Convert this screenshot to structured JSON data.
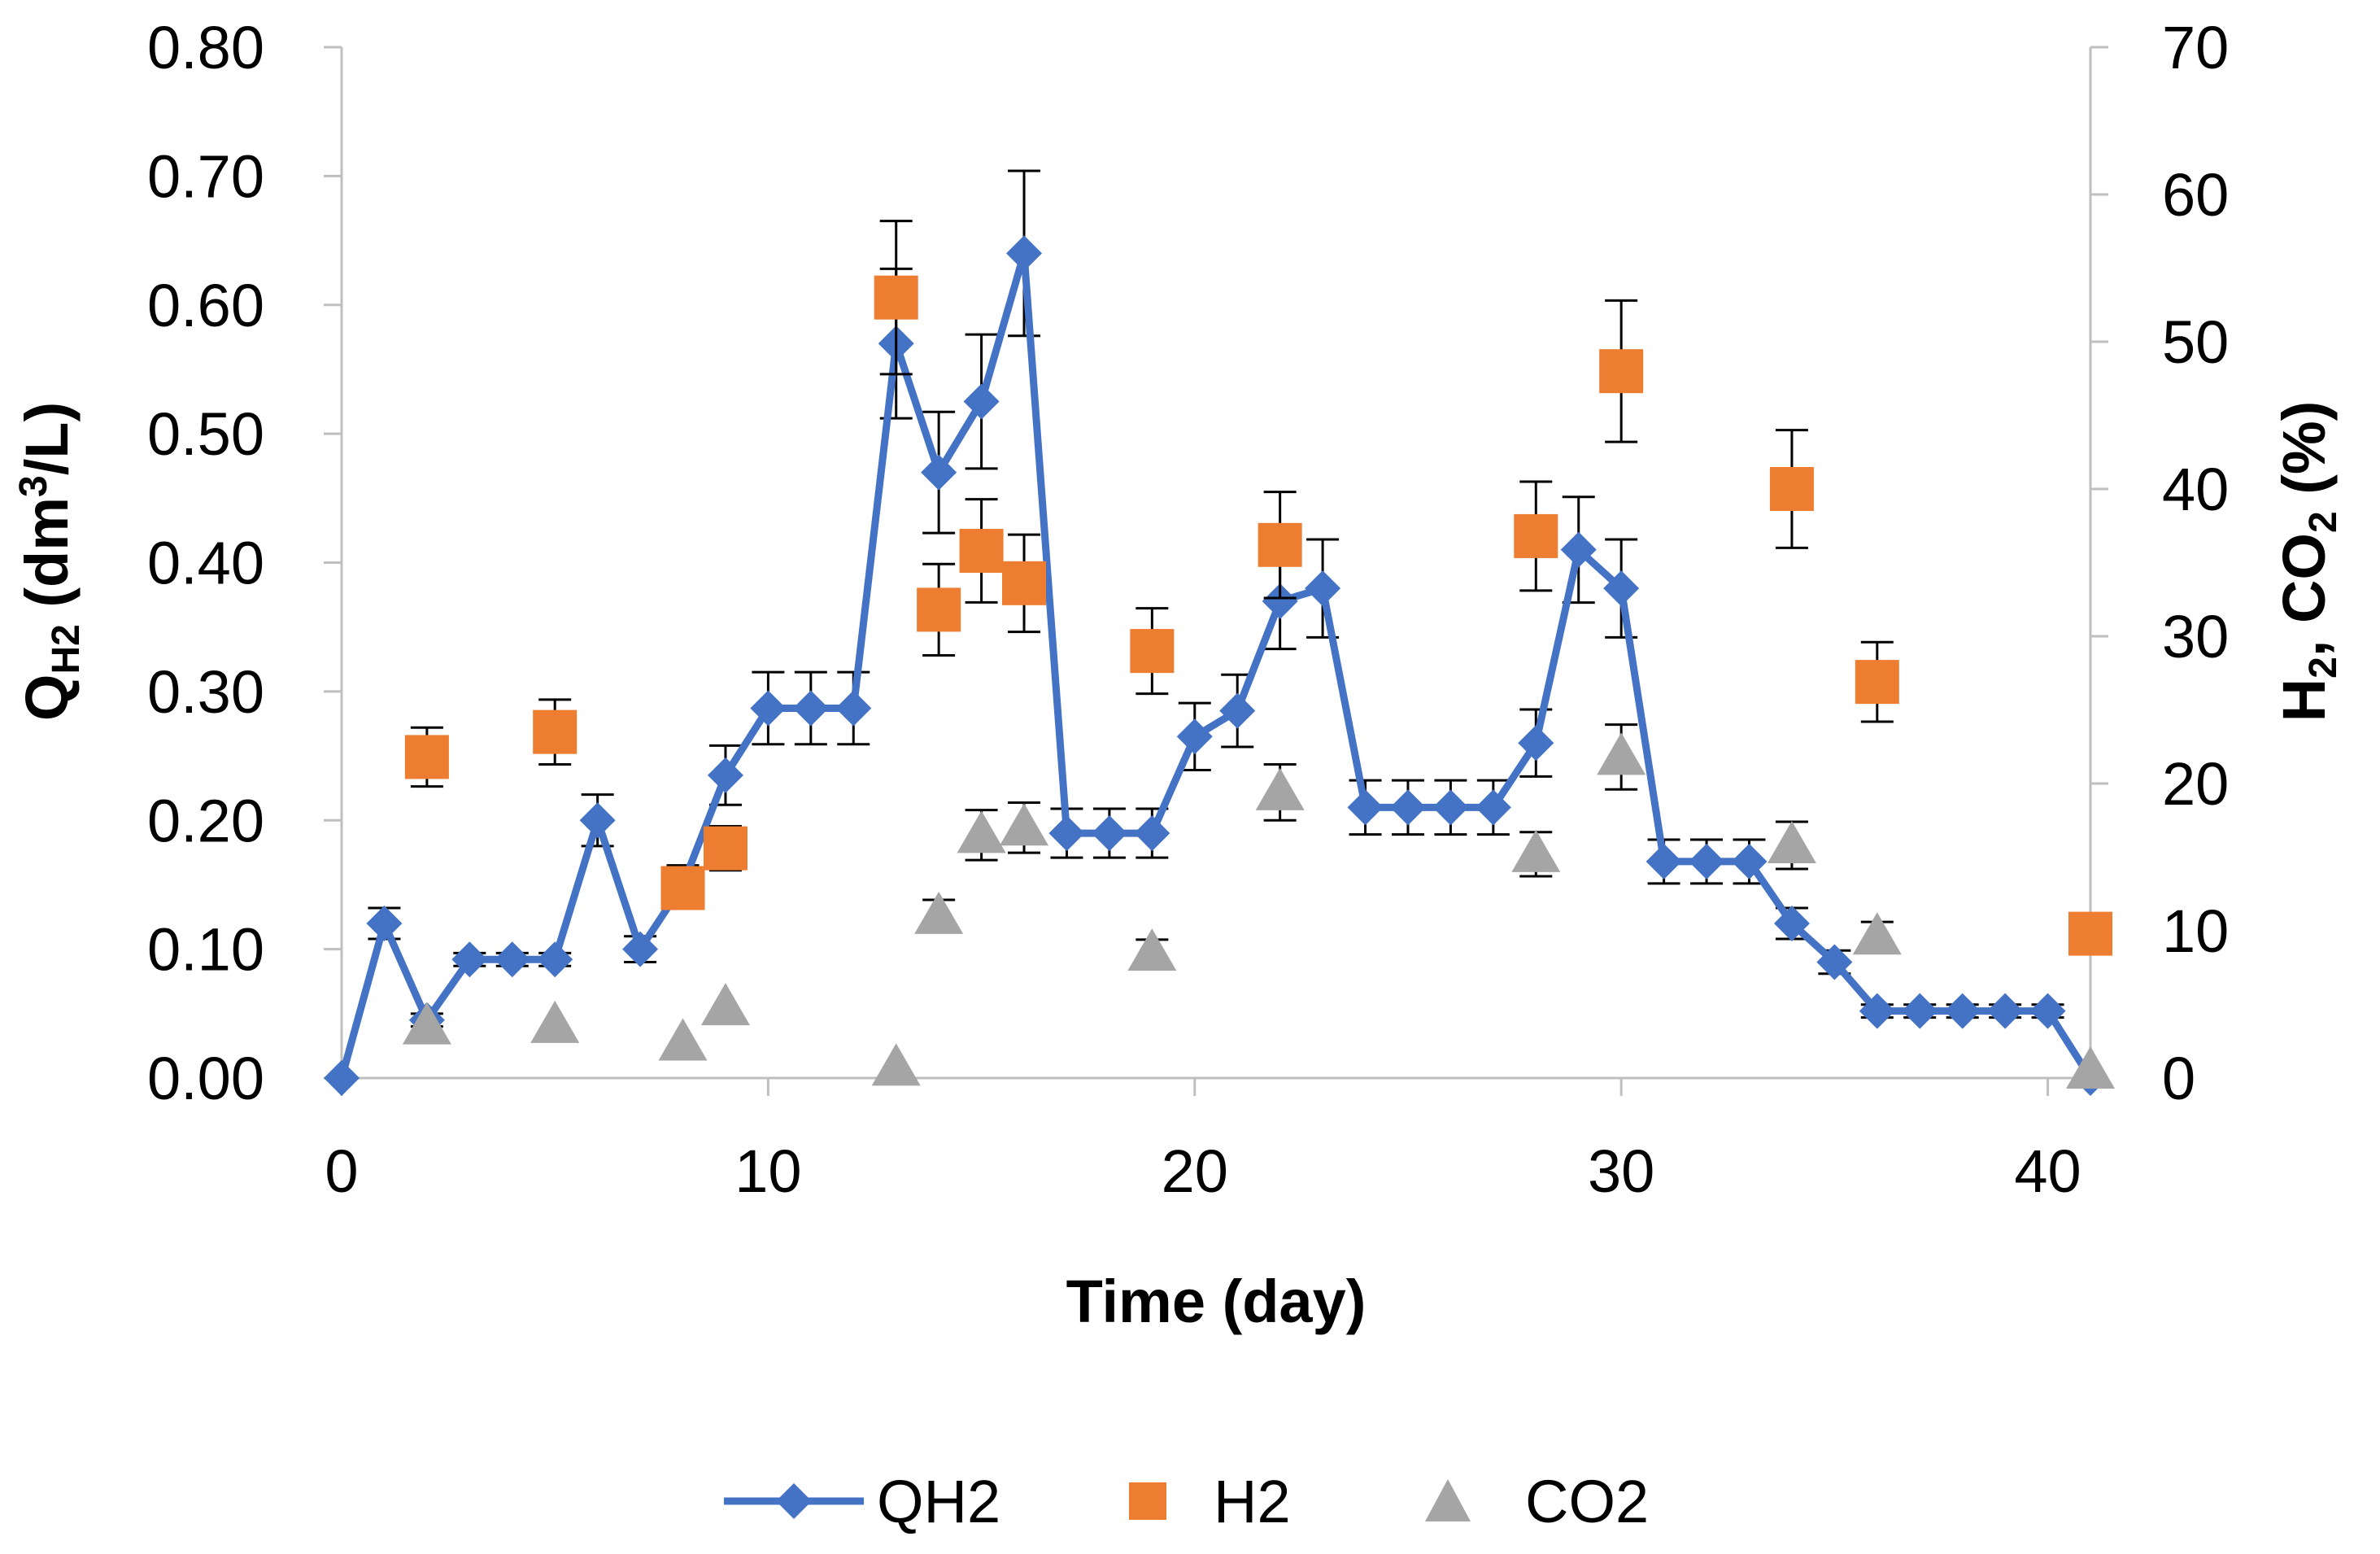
{
  "chart_data": {
    "type": "line",
    "title": "",
    "xlabel": "Time (day)",
    "ylabel_left": {
      "base": "Q",
      "sub": "H2",
      "rest": " (dm",
      "sup": "3",
      "end": "/L)"
    },
    "ylabel_right": {
      "p1": "H",
      "sub1": "2",
      "p2": ", CO",
      "sub2": "2",
      "p3": " (%)"
    },
    "xlim": [
      0,
      41
    ],
    "x_ticks": [
      0,
      10,
      20,
      30,
      40
    ],
    "ylim_left": [
      0,
      0.8
    ],
    "y_ticks_left": [
      "0.00",
      "0.10",
      "0.20",
      "0.30",
      "0.40",
      "0.50",
      "0.60",
      "0.70",
      "0.80"
    ],
    "ylim_right": [
      0,
      70
    ],
    "y_ticks_right": [
      "0",
      "10",
      "20",
      "30",
      "40",
      "50",
      "60",
      "70"
    ],
    "legend_position": "bottom",
    "series": [
      {
        "name": "QH2",
        "axis": "left",
        "color": "#4472C4",
        "marker": "diamond",
        "line": true,
        "x": [
          0,
          1,
          2,
          3,
          4,
          5,
          6,
          7,
          8,
          9,
          10,
          11,
          12,
          13,
          14,
          15,
          16,
          17,
          18,
          19,
          20,
          21,
          22,
          23,
          24,
          25,
          26,
          27,
          28,
          29,
          30,
          31,
          32,
          33,
          34,
          35,
          36,
          37,
          38,
          39,
          40,
          41
        ],
        "y": [
          0.0,
          0.12,
          0.045,
          0.092,
          0.092,
          0.092,
          0.2,
          0.1,
          0.15,
          0.235,
          0.287,
          0.287,
          0.287,
          0.57,
          0.47,
          0.525,
          0.64,
          0.19,
          0.19,
          0.19,
          0.265,
          0.285,
          0.37,
          0.38,
          0.21,
          0.21,
          0.21,
          0.21,
          0.26,
          0.41,
          0.38,
          0.168,
          0.168,
          0.168,
          0.12,
          0.09,
          0.052,
          0.052,
          0.052,
          0.052,
          0.052,
          0.0
        ],
        "err": [
          0,
          0.012,
          0.005,
          0.005,
          0.005,
          0.005,
          0.02,
          0.01,
          0.015,
          0.023,
          0.028,
          0.028,
          0.028,
          0.058,
          0.047,
          0.052,
          0.064,
          0.019,
          0.019,
          0.019,
          0.026,
          0.028,
          0.037,
          0.038,
          0.021,
          0.021,
          0.021,
          0.021,
          0.026,
          0.041,
          0.038,
          0.017,
          0.017,
          0.017,
          0.012,
          0.009,
          0.005,
          0.005,
          0.005,
          0.005,
          0.005,
          0
        ]
      },
      {
        "name": "H2",
        "axis": "right",
        "color": "#ED7D31",
        "marker": "square",
        "line": false,
        "x": [
          2,
          5,
          8,
          9,
          13,
          14,
          15,
          16,
          19,
          22,
          28,
          30,
          34,
          36,
          41
        ],
        "y": [
          21.8,
          23.5,
          12.9,
          15.6,
          53.0,
          31.8,
          35.8,
          33.6,
          29.0,
          36.2,
          36.8,
          48.0,
          40.0,
          26.9,
          9.8
        ],
        "err": [
          2.0,
          2.2,
          1.3,
          1.5,
          5.2,
          3.1,
          3.5,
          3.3,
          2.9,
          3.6,
          3.7,
          4.8,
          4.0,
          2.7,
          0
        ]
      },
      {
        "name": "CO2",
        "axis": "right",
        "color": "#A5A5A5",
        "marker": "triangle",
        "line": false,
        "x": [
          2,
          5,
          8,
          9,
          13,
          14,
          15,
          16,
          19,
          22,
          28,
          30,
          34,
          36,
          41
        ],
        "y": [
          3.5,
          3.6,
          2.4,
          4.8,
          0.7,
          11.0,
          16.5,
          17.0,
          8.5,
          19.4,
          15.2,
          21.8,
          15.8,
          9.6,
          0.5
        ],
        "err": [
          0,
          0,
          0,
          0,
          0,
          1.1,
          1.7,
          1.7,
          0.9,
          1.9,
          1.5,
          2.2,
          1.6,
          1.0,
          0
        ]
      }
    ]
  }
}
